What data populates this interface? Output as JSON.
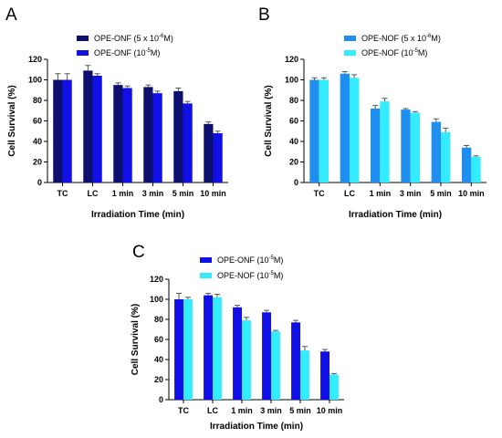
{
  "chart_data": [
    {
      "panel": "A",
      "type": "bar",
      "categories": [
        "TC",
        "LC",
        "1 min",
        "3 min",
        "5 min",
        "10 min"
      ],
      "series": [
        {
          "name": "OPE-ONF (5 x 10",
          "name_sup": "-6",
          "name_tail": "M)",
          "color": "#0c0f6e",
          "values": [
            100,
            109,
            95,
            93,
            89,
            57
          ],
          "errors": [
            6,
            5,
            2,
            2,
            3,
            2
          ]
        },
        {
          "name": "OPE-ONF (10",
          "name_sup": "-5",
          "name_tail": "M)",
          "color": "#1010e6",
          "values": [
            100,
            104,
            92,
            87,
            77,
            48
          ],
          "errors": [
            6,
            2,
            2,
            2,
            2,
            2
          ]
        }
      ],
      "xlabel": "Irradiation Time (min)",
      "ylabel": "Cell Survival (%)",
      "ylim": [
        0,
        120
      ],
      "yticks": [
        0,
        20,
        40,
        60,
        80,
        100,
        120
      ],
      "legend": "top"
    },
    {
      "panel": "B",
      "type": "bar",
      "categories": [
        "TC",
        "LC",
        "1 min",
        "3 min",
        "5 min",
        "10 min"
      ],
      "series": [
        {
          "name": "OPE-NOF (5 x 10",
          "name_sup": "-6",
          "name_tail": "M)",
          "color": "#1e8ef0",
          "values": [
            100,
            106,
            72,
            71,
            59,
            34
          ],
          "errors": [
            2,
            2,
            3,
            1,
            3,
            2
          ]
        },
        {
          "name": "OPE-NOF (10",
          "name_sup": "-5",
          "name_tail": "M)",
          "color": "#33ecff",
          "values": [
            100,
            102,
            79,
            68,
            49,
            25
          ],
          "errors": [
            2,
            3,
            3,
            1,
            4,
            1
          ]
        }
      ],
      "xlabel": "Irradiation Time (min)",
      "ylabel": "Cell Survival (%)",
      "ylim": [
        0,
        120
      ],
      "yticks": [
        0,
        20,
        40,
        60,
        80,
        100,
        120
      ],
      "legend": "top"
    },
    {
      "panel": "C",
      "type": "bar",
      "categories": [
        "TC",
        "LC",
        "1 min",
        "3 min",
        "5 min",
        "10 min"
      ],
      "series": [
        {
          "name": "OPE-ONF (10",
          "name_sup": "-5",
          "name_tail": "M)",
          "color": "#1010e6",
          "values": [
            100,
            104,
            92,
            87,
            77,
            48
          ],
          "errors": [
            6,
            2,
            2,
            2,
            2,
            2
          ]
        },
        {
          "name": "OPE-NOF (10",
          "name_sup": "-5",
          "name_tail": "M)",
          "color": "#33ecff",
          "values": [
            100,
            102,
            79,
            68,
            49,
            25
          ],
          "errors": [
            2,
            3,
            3,
            1,
            4,
            1
          ]
        }
      ],
      "xlabel": "Irradiation Time (min)",
      "ylabel": "Cell Survival (%)",
      "ylim": [
        0,
        120
      ],
      "yticks": [
        0,
        20,
        40,
        60,
        80,
        100,
        120
      ],
      "legend": "top"
    }
  ]
}
